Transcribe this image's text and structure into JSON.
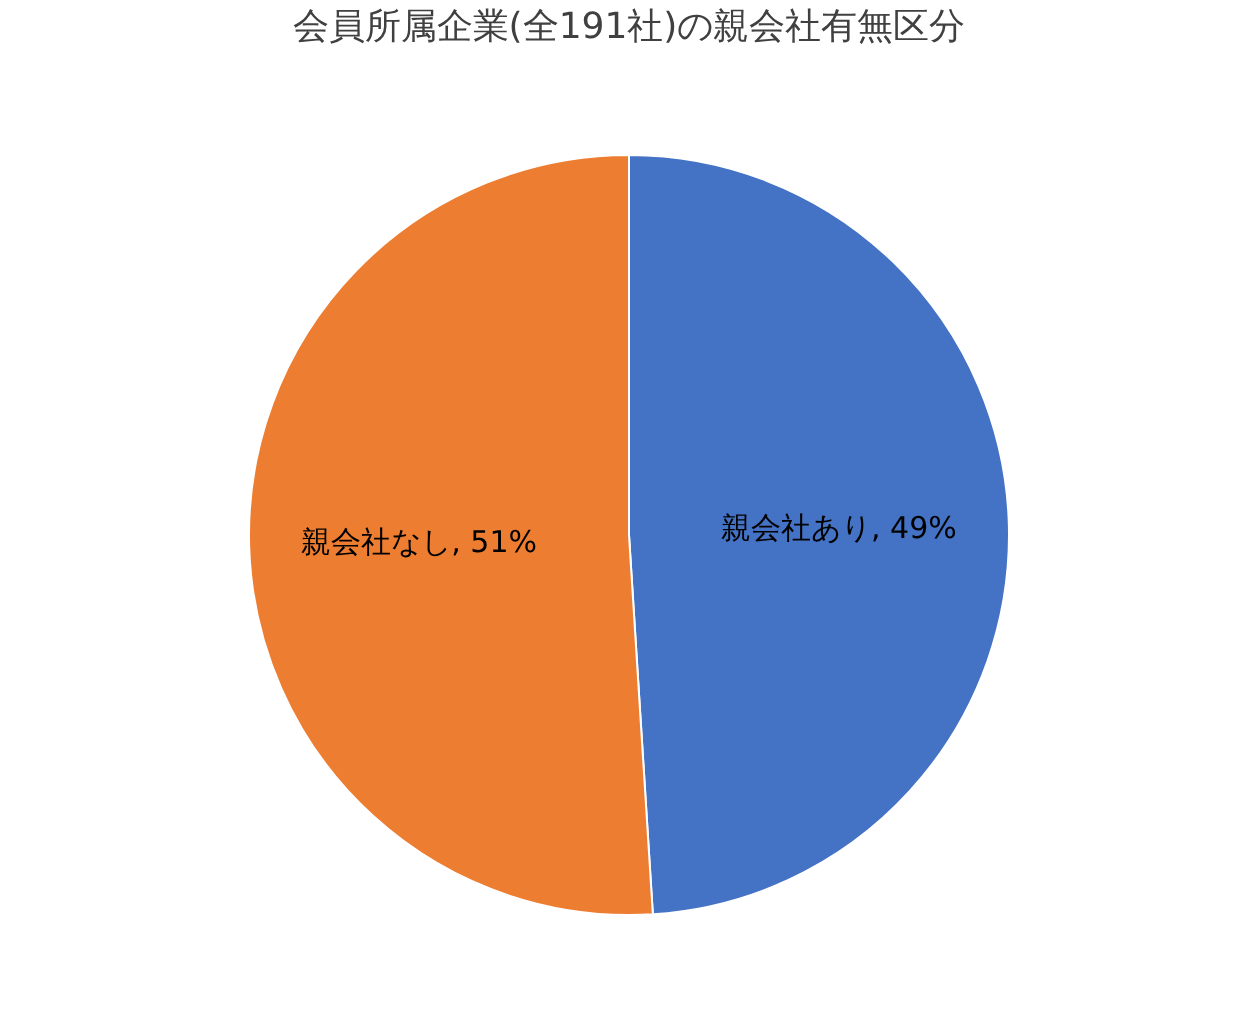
{
  "chart_data": {
    "type": "pie",
    "title": "会員所属企業(全191社)の親会社有無区分",
    "categories": [
      "親会社あり",
      "親会社なし"
    ],
    "values": [
      49,
      51
    ],
    "colors": [
      "#4472c4",
      "#ed7d31"
    ],
    "value_labels": [
      "49%",
      "51%"
    ],
    "legend": false
  }
}
